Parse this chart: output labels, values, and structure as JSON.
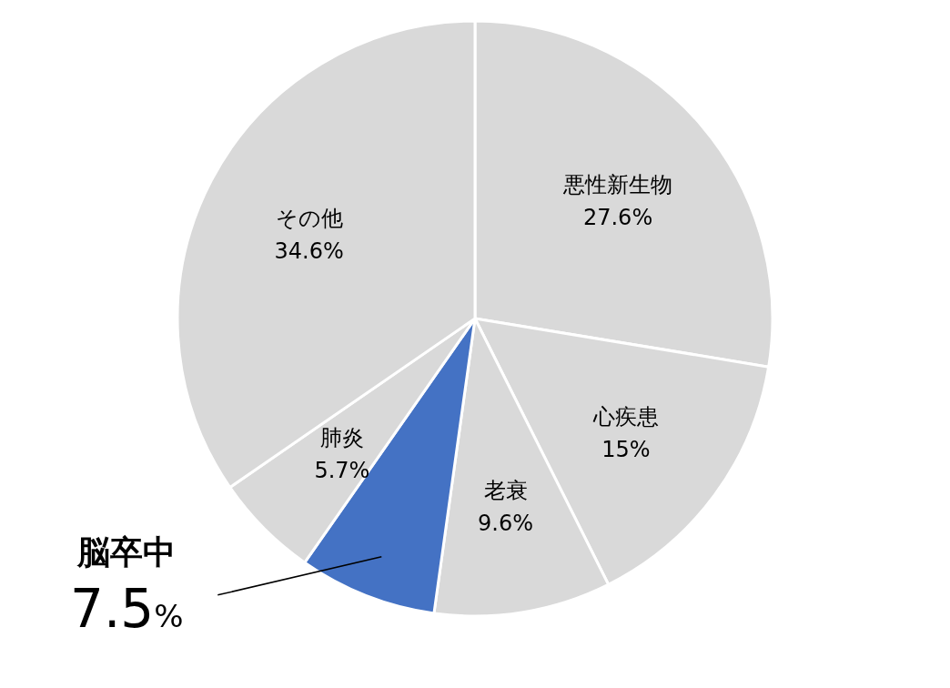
{
  "chart_data": {
    "type": "pie",
    "categories": [
      "悪性新生物",
      "心疾患",
      "老衰",
      "脳卒中",
      "肺炎",
      "その他"
    ],
    "values": [
      27.6,
      15,
      9.6,
      7.5,
      5.7,
      34.6
    ],
    "value_labels": [
      "27.6%",
      "15%",
      "9.6%",
      "7.5%",
      "5.7%",
      "34.6%"
    ],
    "colors": [
      "#d9d9d9",
      "#d9d9d9",
      "#d9d9d9",
      "#4472c4",
      "#d9d9d9",
      "#d9d9d9"
    ]
  }
}
